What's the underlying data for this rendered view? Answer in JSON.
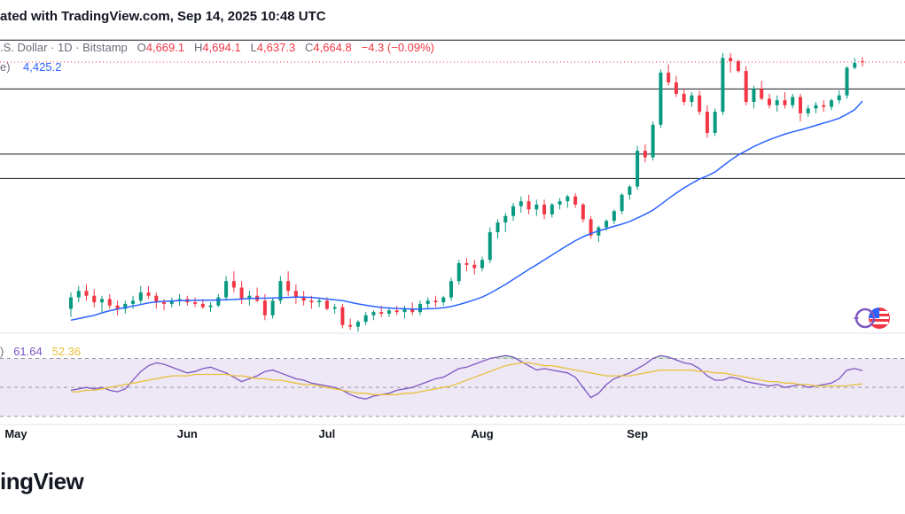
{
  "header": {
    "text": "ated with TradingView.com, Sep 14, 2025 10:48 UTC"
  },
  "legend": {
    "symbol": ".S. Dollar · 1D · Bitstamp",
    "o_key": "O",
    "o": "4,669.1",
    "h_key": "H",
    "h": "4,694.1",
    "l_key": "L",
    "l": "4,637.3",
    "c_key": "C",
    "c": "4,664.8",
    "change": "−4.3 (−0.09%)"
  },
  "ma_legend": {
    "label": "e)",
    "value": "4,425.2"
  },
  "rsi_legend": {
    "label": ")",
    "rsi": "61.64",
    "ma": "52.36"
  },
  "footer": {
    "brand": "ingView"
  },
  "colors": {
    "up": "#089981",
    "down": "#f23645",
    "ma": "#2962ff",
    "rsi": "#7e57c2",
    "rsi_ma": "#e9c03a",
    "rsi_band": "#ede7f6"
  },
  "chart_data": {
    "type": "candlestick",
    "x_labels": [
      "May",
      "Jun",
      "Jul",
      "Aug",
      "Sep"
    ],
    "last_close": 4664.8,
    "horizontal_levels": [
      4800,
      4500,
      4100,
      3950
    ],
    "candles": [
      [
        3150,
        3250,
        3100,
        3220
      ],
      [
        3220,
        3290,
        3190,
        3260
      ],
      [
        3260,
        3300,
        3200,
        3230
      ],
      [
        3230,
        3270,
        3160,
        3190
      ],
      [
        3190,
        3230,
        3130,
        3210
      ],
      [
        3210,
        3240,
        3150,
        3170
      ],
      [
        3170,
        3200,
        3110,
        3150
      ],
      [
        3150,
        3200,
        3120,
        3180
      ],
      [
        3180,
        3230,
        3150,
        3200
      ],
      [
        3200,
        3290,
        3180,
        3250
      ],
      [
        3250,
        3290,
        3210,
        3230
      ],
      [
        3230,
        3250,
        3150,
        3190
      ],
      [
        3190,
        3210,
        3140,
        3180
      ],
      [
        3180,
        3220,
        3160,
        3200
      ],
      [
        3200,
        3240,
        3170,
        3210
      ],
      [
        3210,
        3230,
        3170,
        3190
      ],
      [
        3190,
        3220,
        3160,
        3180
      ],
      [
        3180,
        3210,
        3150,
        3160
      ],
      [
        3160,
        3190,
        3130,
        3170
      ],
      [
        3170,
        3240,
        3160,
        3220
      ],
      [
        3220,
        3350,
        3200,
        3320
      ],
      [
        3320,
        3380,
        3250,
        3280
      ],
      [
        3280,
        3320,
        3180,
        3210
      ],
      [
        3210,
        3260,
        3170,
        3230
      ],
      [
        3230,
        3280,
        3190,
        3200
      ],
      [
        3200,
        3240,
        3080,
        3110
      ],
      [
        3110,
        3220,
        3090,
        3200
      ],
      [
        3200,
        3350,
        3180,
        3320
      ],
      [
        3320,
        3380,
        3230,
        3260
      ],
      [
        3260,
        3300,
        3180,
        3220
      ],
      [
        3220,
        3260,
        3170,
        3200
      ],
      [
        3200,
        3230,
        3150,
        3190
      ],
      [
        3190,
        3220,
        3160,
        3200
      ],
      [
        3200,
        3220,
        3140,
        3150
      ],
      [
        3150,
        3180,
        3120,
        3160
      ],
      [
        3160,
        3180,
        3030,
        3050
      ],
      [
        3050,
        3090,
        3020,
        3040
      ],
      [
        3040,
        3080,
        3010,
        3070
      ],
      [
        3070,
        3130,
        3050,
        3110
      ],
      [
        3110,
        3140,
        3080,
        3130
      ],
      [
        3130,
        3170,
        3100,
        3120
      ],
      [
        3120,
        3160,
        3100,
        3140
      ],
      [
        3140,
        3170,
        3110,
        3130
      ],
      [
        3130,
        3170,
        3090,
        3150
      ],
      [
        3150,
        3190,
        3110,
        3130
      ],
      [
        3130,
        3200,
        3110,
        3180
      ],
      [
        3180,
        3220,
        3150,
        3200
      ],
      [
        3200,
        3230,
        3160,
        3190
      ],
      [
        3190,
        3230,
        3170,
        3220
      ],
      [
        3220,
        3340,
        3200,
        3320
      ],
      [
        3320,
        3450,
        3300,
        3430
      ],
      [
        3430,
        3460,
        3380,
        3420
      ],
      [
        3420,
        3450,
        3360,
        3400
      ],
      [
        3400,
        3470,
        3380,
        3450
      ],
      [
        3450,
        3650,
        3430,
        3620
      ],
      [
        3620,
        3700,
        3580,
        3680
      ],
      [
        3680,
        3740,
        3620,
        3720
      ],
      [
        3720,
        3800,
        3690,
        3780
      ],
      [
        3780,
        3840,
        3740,
        3810
      ],
      [
        3810,
        3850,
        3730,
        3760
      ],
      [
        3760,
        3820,
        3720,
        3790
      ],
      [
        3790,
        3820,
        3700,
        3730
      ],
      [
        3730,
        3800,
        3710,
        3790
      ],
      [
        3790,
        3830,
        3760,
        3810
      ],
      [
        3810,
        3850,
        3770,
        3840
      ],
      [
        3840,
        3860,
        3770,
        3790
      ],
      [
        3790,
        3800,
        3680,
        3700
      ],
      [
        3700,
        3720,
        3580,
        3600
      ],
      [
        3600,
        3660,
        3560,
        3650
      ],
      [
        3650,
        3700,
        3630,
        3690
      ],
      [
        3690,
        3760,
        3670,
        3750
      ],
      [
        3750,
        3860,
        3730,
        3850
      ],
      [
        3850,
        3910,
        3820,
        3900
      ],
      [
        3900,
        4150,
        3880,
        4120
      ],
      [
        4120,
        4160,
        4050,
        4080
      ],
      [
        4080,
        4300,
        4060,
        4280
      ],
      [
        4280,
        4620,
        4260,
        4600
      ],
      [
        4600,
        4650,
        4520,
        4540
      ],
      [
        4540,
        4580,
        4450,
        4470
      ],
      [
        4470,
        4500,
        4400,
        4420
      ],
      [
        4420,
        4480,
        4390,
        4460
      ],
      [
        4460,
        4490,
        4340,
        4360
      ],
      [
        4360,
        4400,
        4200,
        4230
      ],
      [
        4230,
        4380,
        4210,
        4360
      ],
      [
        4360,
        4720,
        4340,
        4690
      ],
      [
        4690,
        4720,
        4600,
        4670
      ],
      [
        4670,
        4680,
        4600,
        4610
      ],
      [
        4610,
        4640,
        4400,
        4420
      ],
      [
        4420,
        4520,
        4380,
        4500
      ],
      [
        4500,
        4550,
        4430,
        4440
      ],
      [
        4440,
        4470,
        4380,
        4400
      ],
      [
        4400,
        4460,
        4360,
        4430
      ],
      [
        4430,
        4480,
        4380,
        4400
      ],
      [
        4400,
        4470,
        4380,
        4450
      ],
      [
        4450,
        4470,
        4300,
        4350
      ],
      [
        4350,
        4400,
        4330,
        4380
      ],
      [
        4380,
        4420,
        4350,
        4400
      ],
      [
        4400,
        4430,
        4360,
        4390
      ],
      [
        4390,
        4440,
        4370,
        4430
      ],
      [
        4430,
        4490,
        4410,
        4460
      ],
      [
        4460,
        4640,
        4440,
        4630
      ],
      [
        4630,
        4690,
        4620,
        4660
      ],
      [
        4669.1,
        4694.1,
        4637.3,
        4664.8
      ]
    ],
    "ma_series": [
      3080,
      3090,
      3100,
      3110,
      3125,
      3138,
      3148,
      3158,
      3167,
      3176,
      3186,
      3192,
      3196,
      3198,
      3200,
      3201,
      3202,
      3203,
      3203,
      3204,
      3205,
      3207,
      3210,
      3213,
      3215,
      3215,
      3216,
      3218,
      3220,
      3222,
      3222,
      3220,
      3215,
      3210,
      3205,
      3200,
      3190,
      3180,
      3172,
      3165,
      3158,
      3155,
      3152,
      3150,
      3148,
      3148,
      3150,
      3152,
      3156,
      3164,
      3176,
      3190,
      3205,
      3222,
      3245,
      3272,
      3300,
      3330,
      3360,
      3392,
      3420,
      3450,
      3480,
      3510,
      3540,
      3568,
      3592,
      3612,
      3628,
      3642,
      3656,
      3670,
      3686,
      3708,
      3730,
      3756,
      3790,
      3826,
      3860,
      3892,
      3920,
      3946,
      3966,
      3990,
      4026,
      4062,
      4094,
      4120,
      4146,
      4168,
      4188,
      4206,
      4222,
      4236,
      4248,
      4262,
      4276,
      4290,
      4304,
      4320,
      4345,
      4372,
      4425.2
    ],
    "rsi_series": [
      48,
      49,
      50,
      49,
      50,
      48,
      47,
      49,
      55,
      61,
      65,
      67,
      66,
      64,
      62,
      60,
      61,
      63,
      64,
      62,
      60,
      57,
      54,
      56,
      58,
      61,
      62,
      60,
      58,
      56,
      55,
      53,
      52,
      51,
      50,
      48,
      45,
      43,
      42,
      44,
      45,
      46,
      48,
      49,
      50,
      52,
      54,
      56,
      57,
      60,
      63,
      64,
      66,
      68,
      70,
      71,
      72,
      71,
      68,
      65,
      62,
      63,
      62,
      61,
      60,
      57,
      50,
      43,
      46,
      52,
      56,
      58,
      60,
      63,
      66,
      70,
      72,
      71,
      69,
      67,
      66,
      63,
      58,
      55,
      55,
      57,
      56,
      54,
      53,
      52,
      51,
      52,
      50,
      51,
      52,
      50,
      51,
      52,
      53,
      56,
      62,
      63,
      61.64
    ],
    "rsi_ma_series": [
      47,
      47,
      48,
      48,
      49,
      50,
      51,
      52,
      53,
      54,
      55,
      56,
      57,
      58,
      58,
      58,
      59,
      59,
      59,
      59,
      59,
      58,
      58,
      57,
      56,
      56,
      55,
      55,
      54,
      53,
      52,
      52,
      51,
      50,
      49,
      48,
      47,
      46,
      46,
      45,
      45,
      45,
      45,
      46,
      46,
      47,
      48,
      49,
      50,
      51,
      53,
      55,
      57,
      59,
      61,
      63,
      65,
      66,
      67,
      67,
      66,
      65,
      65,
      64,
      63,
      62,
      61,
      60,
      59,
      58,
      58,
      58,
      58,
      59,
      60,
      61,
      62,
      62,
      62,
      62,
      62,
      61,
      61,
      60,
      60,
      59,
      58,
      57,
      56,
      55,
      54,
      54,
      53,
      53,
      52,
      52,
      51,
      51,
      51,
      51,
      51,
      52,
      52.36
    ],
    "rsi_levels": [
      70,
      50,
      30
    ]
  }
}
